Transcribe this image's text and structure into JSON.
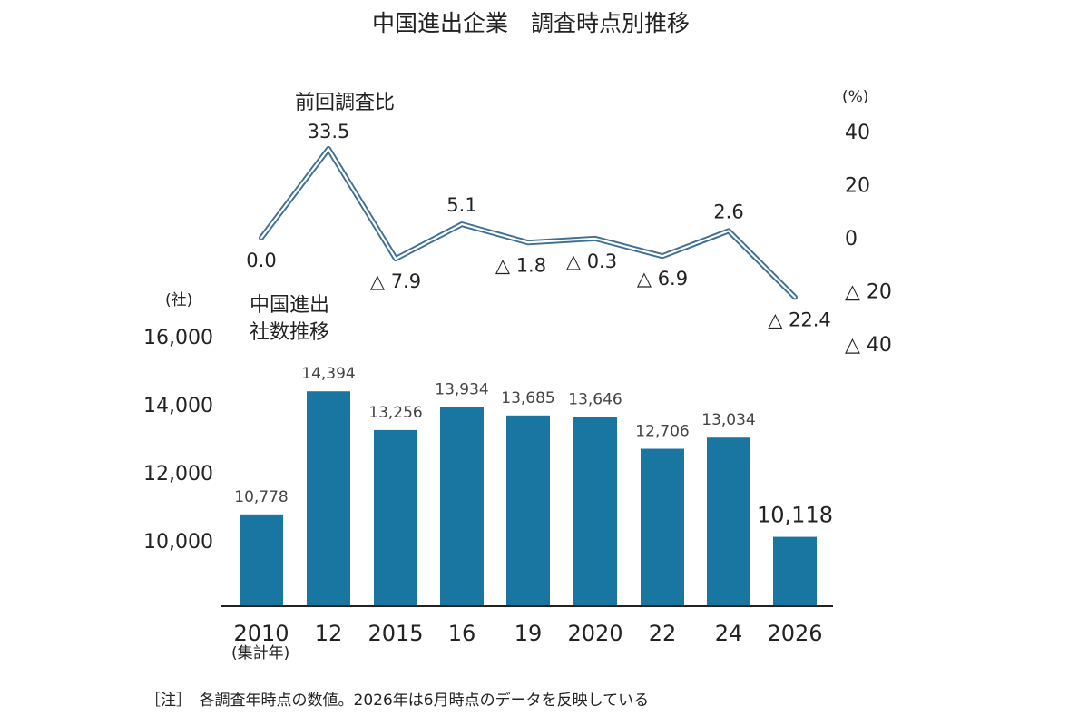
{
  "title": "中国進出企業　調査時点別推移",
  "note": "［注］　各調査年時点の数値。2026年は6月時点のデータを反映している",
  "colors": {
    "bar": "#1976a0",
    "line": "#3f6f93",
    "axis": "#222222"
  },
  "chart_data": [
    {
      "type": "line",
      "title": "前回調査比",
      "unit": "(%)",
      "ylim": [
        -40,
        40
      ],
      "y_ticks": [
        40,
        20,
        0,
        -20,
        -40
      ],
      "y_tick_labels": [
        "40",
        "20",
        "0",
        "△ 20",
        "△ 40"
      ],
      "categories": [
        "2010",
        "12",
        "2015",
        "16",
        "19",
        "2020",
        "22",
        "24",
        "2026"
      ],
      "values": [
        0.0,
        33.5,
        -7.9,
        5.1,
        -1.8,
        -0.3,
        -6.9,
        2.6,
        -22.4
      ],
      "value_labels": [
        "0.0",
        "33.5",
        "△ 7.9",
        "5.1",
        "△ 1.8",
        "△ 0.3",
        "△ 6.9",
        "2.6",
        "△ 22.4"
      ]
    },
    {
      "type": "bar",
      "title": "中国進出\n社数推移",
      "unit": "(社)",
      "ylim": [
        8000,
        16000
      ],
      "y_ticks": [
        10000,
        12000,
        14000,
        16000
      ],
      "y_tick_labels": [
        "10,000",
        "12,000",
        "14,000",
        "16,000"
      ],
      "categories": [
        "2010",
        "12",
        "2015",
        "16",
        "19",
        "2020",
        "22",
        "24",
        "2026"
      ],
      "x_sublabel": "(集計年)",
      "values": [
        10778,
        14394,
        13256,
        13934,
        13685,
        13646,
        12706,
        13034,
        10118
      ],
      "value_labels": [
        "10,778",
        "14,394",
        "13,256",
        "13,934",
        "13,685",
        "13,646",
        "12,706",
        "13,034",
        "10,118"
      ]
    }
  ]
}
